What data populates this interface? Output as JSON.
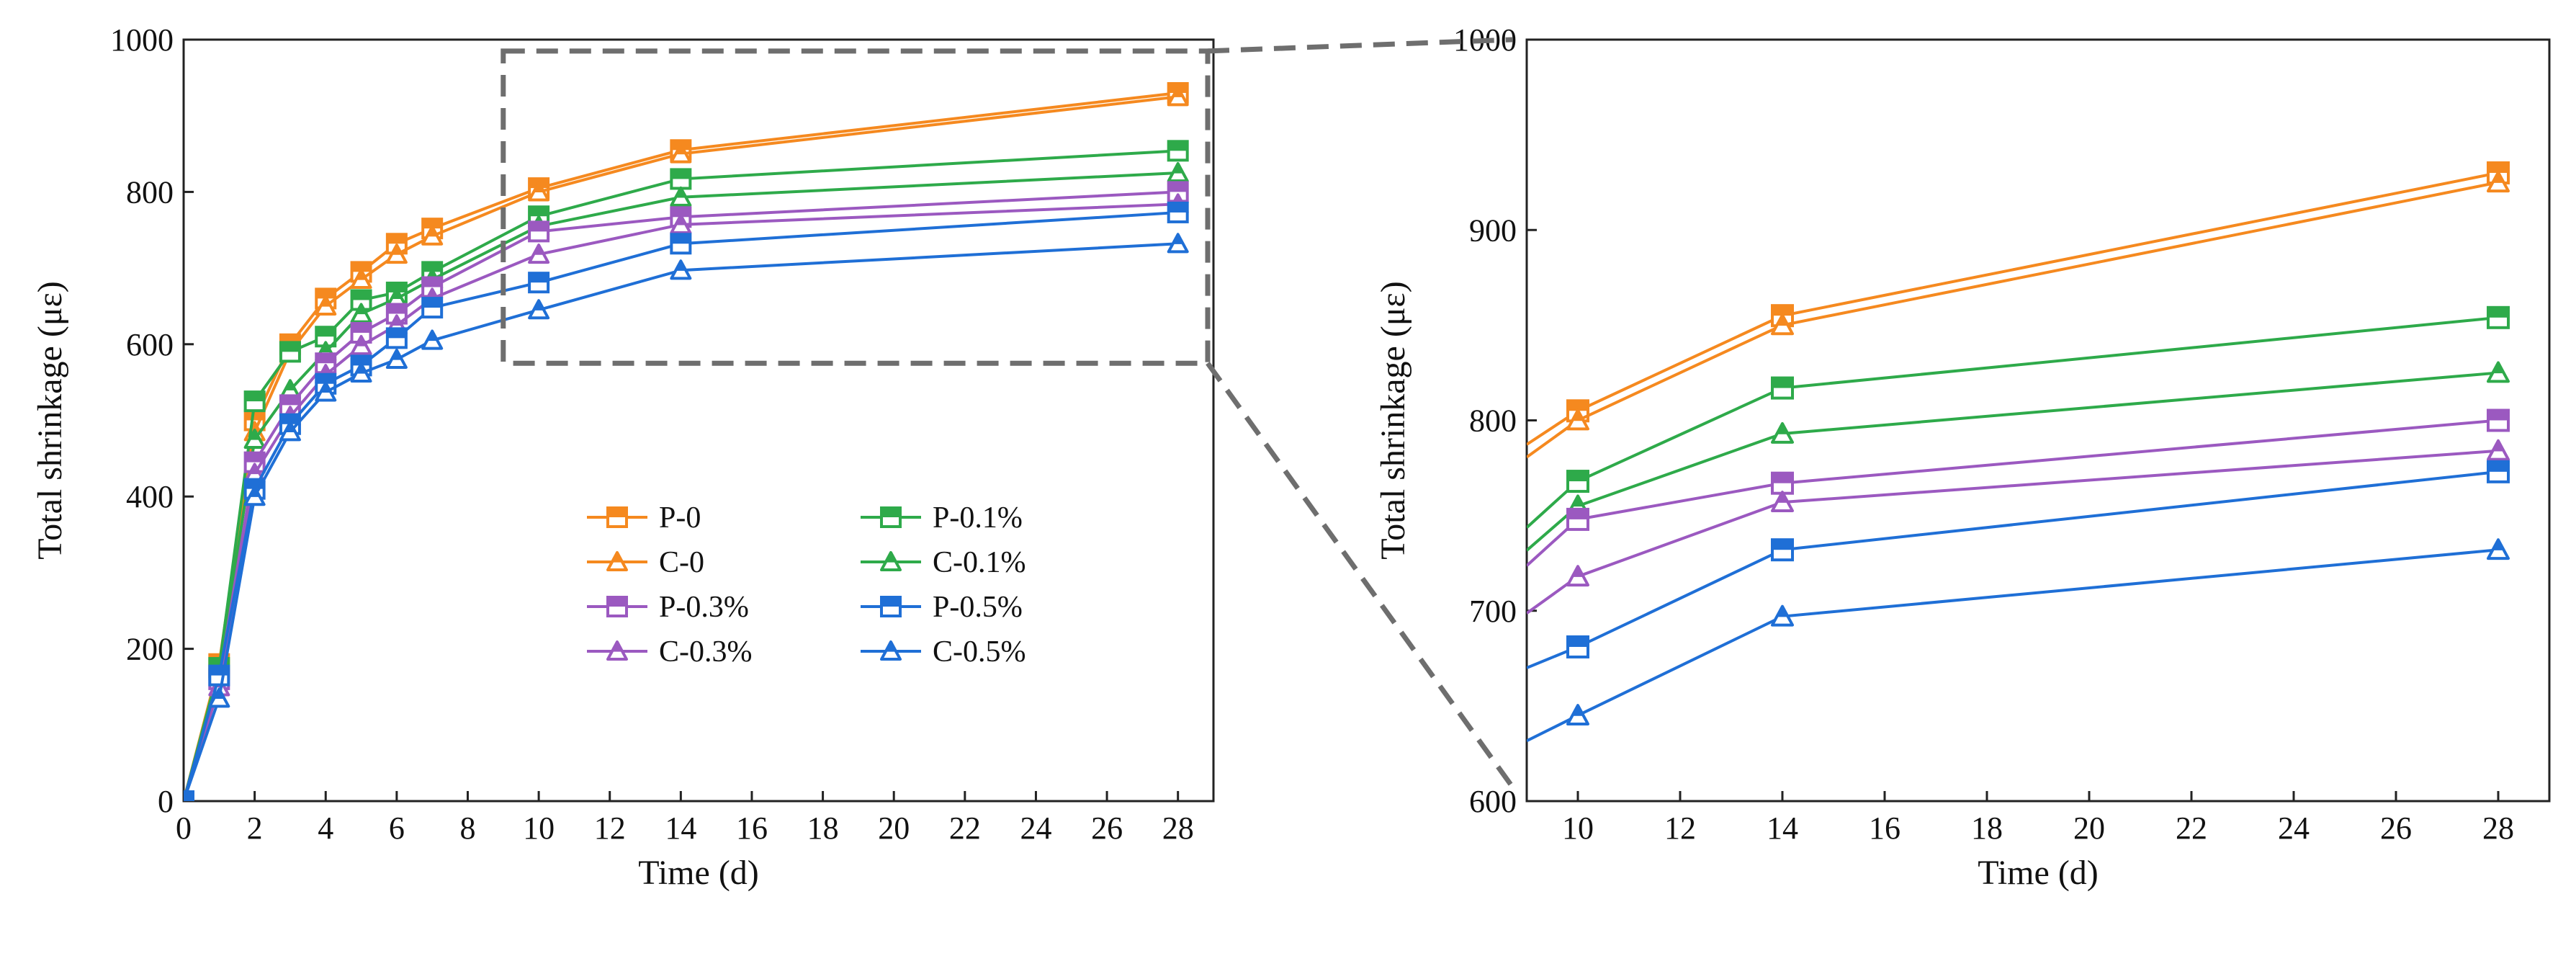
{
  "colors": {
    "orange": "#F5891F",
    "green": "#2EAA4A",
    "purple": "#9B59C0",
    "blue": "#1F6FD6",
    "zoom_box": "#6e6e6e"
  },
  "chart_data": [
    {
      "type": "line",
      "panel": "full",
      "xlabel": "Time (d)",
      "ylabel": "Total shrinkage (με)",
      "xlim": [
        0,
        29
      ],
      "ylim": [
        0,
        1000
      ],
      "xticks": [
        "0",
        "2",
        "4",
        "6",
        "8",
        "10",
        "12",
        "14",
        "16",
        "18",
        "20",
        "22",
        "24",
        "26",
        "28"
      ],
      "yticks": [
        "0",
        "200",
        "400",
        "600",
        "800",
        "1000"
      ],
      "grid": false,
      "legend_position": "center",
      "x": [
        0,
        1,
        2,
        3,
        4,
        5,
        6,
        7,
        10,
        14,
        28
      ],
      "series": [
        {
          "name": "P-0",
          "color": "orange",
          "marker": "square",
          "values": [
            0,
            180,
            500,
            600,
            660,
            695,
            732,
            752,
            805,
            855,
            930
          ]
        },
        {
          "name": "C-0",
          "color": "orange",
          "marker": "triangle",
          "values": [
            0,
            175,
            485,
            590,
            650,
            685,
            718,
            742,
            800,
            850,
            925
          ]
        },
        {
          "name": "P-0.1%",
          "color": "green",
          "marker": "square",
          "values": [
            0,
            175,
            525,
            590,
            610,
            658,
            668,
            695,
            768,
            817,
            854
          ]
        },
        {
          "name": "C-0.1%",
          "color": "green",
          "marker": "triangle",
          "values": [
            0,
            170,
            475,
            540,
            590,
            640,
            660,
            685,
            755,
            793,
            825
          ]
        },
        {
          "name": "P-0.3%",
          "color": "purple",
          "marker": "square",
          "values": [
            0,
            160,
            445,
            520,
            575,
            615,
            640,
            675,
            748,
            767,
            800
          ]
        },
        {
          "name": "C-0.3%",
          "color": "purple",
          "marker": "triangle",
          "values": [
            0,
            150,
            430,
            505,
            560,
            598,
            625,
            660,
            718,
            757,
            784
          ]
        },
        {
          "name": "P-0.5%",
          "color": "blue",
          "marker": "square",
          "values": [
            0,
            165,
            410,
            495,
            548,
            572,
            608,
            648,
            681,
            732,
            773
          ]
        },
        {
          "name": "C-0.5%",
          "color": "blue",
          "marker": "triangle",
          "values": [
            0,
            135,
            400,
            485,
            537,
            562,
            580,
            605,
            645,
            697,
            732
          ]
        }
      ],
      "zoom_region": {
        "x": [
          9,
          29
        ],
        "y": [
          575,
          985
        ]
      }
    },
    {
      "type": "line",
      "panel": "zoom",
      "xlabel": "Time (d)",
      "ylabel": "Total shrinkage (με)",
      "xlim": [
        9,
        29
      ],
      "ylim": [
        600,
        1000
      ],
      "xticks": [
        "10",
        "12",
        "14",
        "16",
        "18",
        "20",
        "22",
        "24",
        "26",
        "28"
      ],
      "yticks": [
        "600",
        "700",
        "800",
        "900",
        "1000"
      ],
      "grid": false,
      "x": [
        10,
        14,
        28
      ],
      "series": [
        {
          "name": "P-0",
          "color": "orange",
          "marker": "square",
          "values": [
            805,
            855,
            930
          ]
        },
        {
          "name": "C-0",
          "color": "orange",
          "marker": "triangle",
          "values": [
            800,
            850,
            925
          ]
        },
        {
          "name": "P-0.1%",
          "color": "green",
          "marker": "square",
          "values": [
            768,
            817,
            854
          ]
        },
        {
          "name": "C-0.1%",
          "color": "green",
          "marker": "triangle",
          "values": [
            755,
            793,
            825
          ]
        },
        {
          "name": "P-0.3%",
          "color": "purple",
          "marker": "square",
          "values": [
            748,
            767,
            800
          ]
        },
        {
          "name": "C-0.3%",
          "color": "purple",
          "marker": "triangle",
          "values": [
            718,
            757,
            784
          ]
        },
        {
          "name": "P-0.5%",
          "color": "blue",
          "marker": "square",
          "values": [
            681,
            732,
            773
          ]
        },
        {
          "name": "C-0.5%",
          "color": "blue",
          "marker": "triangle",
          "values": [
            645,
            697,
            732
          ]
        }
      ]
    }
  ]
}
